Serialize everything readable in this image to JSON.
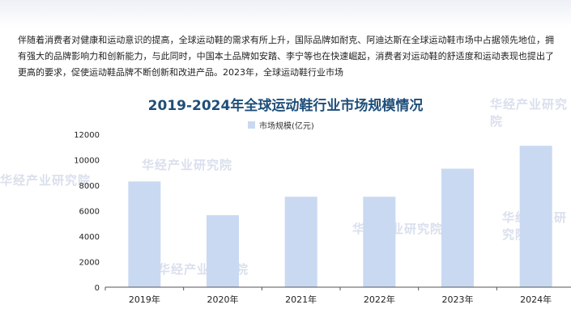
{
  "intro_text": "伴随着消费者对健康和运动意识的提高，全球运动鞋的需求有所上升，国际品牌如耐克、阿迪达斯在全球运动鞋市场中占据领先地位，拥有强大的品牌影响力和创新能力，与此同时，中国本土品牌如安踏、李宁等也在快速崛起，消费者对运动鞋的舒适度和运动表现也提出了更高的要求，促使运动鞋品牌不断创新和改进产品。2023年，全球运动鞋行业市场",
  "watermark": "华经产业研究院",
  "chart_data": {
    "type": "bar",
    "title": "2019-2024年全球运动鞋行业市场规模情况",
    "categories": [
      "2019年",
      "2020年",
      "2021年",
      "2022年",
      "2023年",
      "2024年"
    ],
    "series": [
      {
        "name": "市场规模(亿元)",
        "values": [
          8300,
          5650,
          7100,
          7100,
          9300,
          11100
        ],
        "color": "#c9d9f2"
      }
    ],
    "ylim": [
      0,
      12000
    ],
    "yticks": [
      0,
      2000,
      4000,
      6000,
      8000,
      10000,
      12000
    ],
    "legend": "top-center",
    "grid": false
  }
}
